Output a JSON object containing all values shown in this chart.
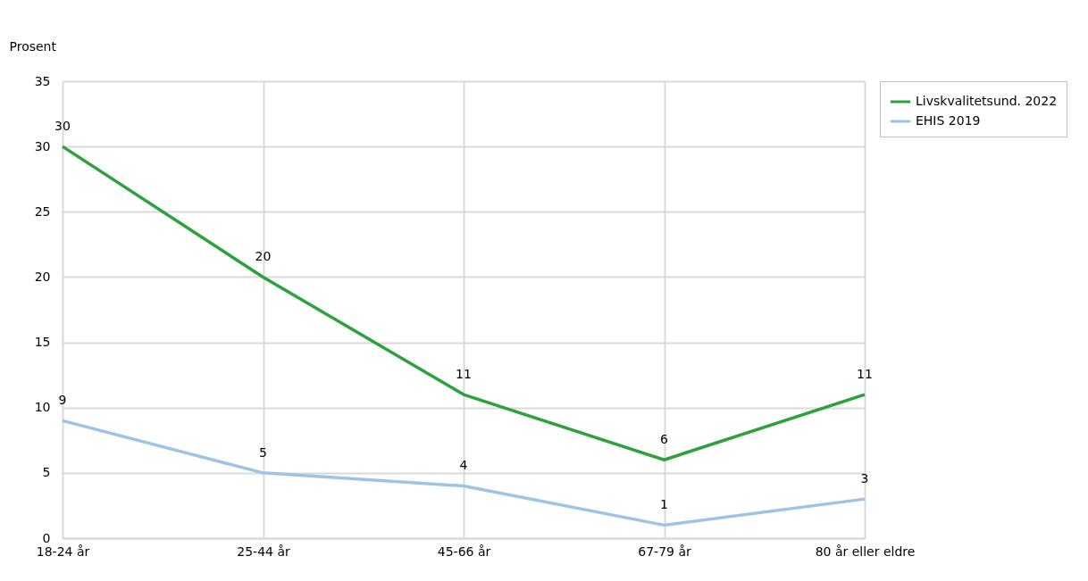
{
  "chart_data": {
    "type": "line",
    "ylabel": "Prosent",
    "categories": [
      "18-24 år",
      "25-44 år",
      "45-66 år",
      "67-79 år",
      "80 år eller eldre"
    ],
    "series": [
      {
        "name": "Livskvalitetsund. 2022",
        "color": "#2ca13c",
        "values": [
          30,
          20,
          11,
          6,
          11
        ]
      },
      {
        "name": "EHIS 2019",
        "color": "#9dc3e6",
        "values": [
          9,
          5,
          4,
          1,
          3
        ]
      }
    ],
    "ylim": [
      0,
      35
    ],
    "yticks": [
      0,
      5,
      10,
      15,
      20,
      25,
      30,
      35
    ],
    "grid": true,
    "legend": "right",
    "data_labels": true,
    "marker": "none",
    "line_style": "solid"
  }
}
